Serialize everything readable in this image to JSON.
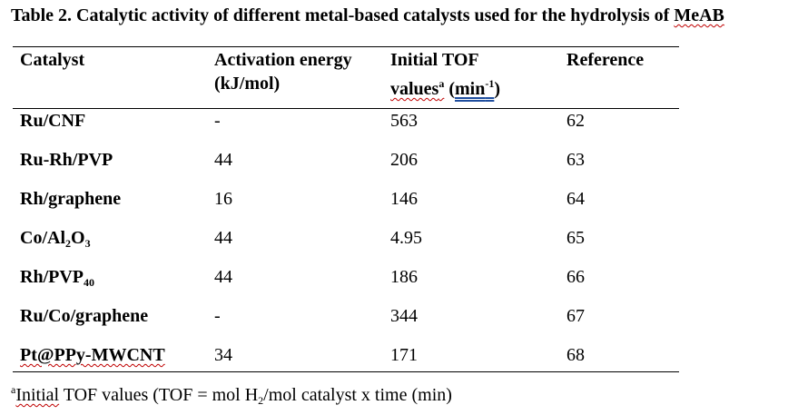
{
  "title": {
    "main": "Table 2. Catalytic activity of different metal-based catalysts used for the hydrolysis of ",
    "end": "MeAB"
  },
  "headers": {
    "catalyst": "Catalyst",
    "activation_line1": "Activation energy",
    "activation_line2": "(kJ/mol)",
    "tof_line1": "Initial TOF",
    "tof_values": "values",
    "tof_sup": "a",
    "tof_unit_open": "(",
    "tof_unit": "min",
    "tof_unit_sup": "-1",
    "tof_unit_close": ")",
    "reference": "Reference"
  },
  "rows": [
    {
      "catalyst": "Ru/CNF",
      "activation": "-",
      "tof": "563",
      "ref": "62"
    },
    {
      "catalyst": "Ru-Rh/PVP",
      "activation": "44",
      "tof": "206",
      "ref": "63"
    },
    {
      "catalyst": "Rh/graphene",
      "activation": "16",
      "tof": "146",
      "ref": "64"
    },
    {
      "catalyst_parts": [
        "Co/Al",
        "2",
        "O",
        "3"
      ],
      "activation": "44",
      "tof": "4.95",
      "ref": "65"
    },
    {
      "catalyst_parts": [
        "Rh/PVP",
        "40"
      ],
      "activation": "44",
      "tof": "186",
      "ref": "66"
    },
    {
      "catalyst": "Ru/Co/graphene",
      "activation": "-",
      "tof": "344",
      "ref": "67"
    },
    {
      "catalyst": "Pt@PPy-MWCNT",
      "activation": "34",
      "tof": "171",
      "ref": "68"
    }
  ],
  "footnote": {
    "sup": "a",
    "word": "Initial",
    "rest1": " TOF values (TOF = mol H",
    "sub": "2",
    "rest2": "/mol catalyst x time (min)"
  }
}
